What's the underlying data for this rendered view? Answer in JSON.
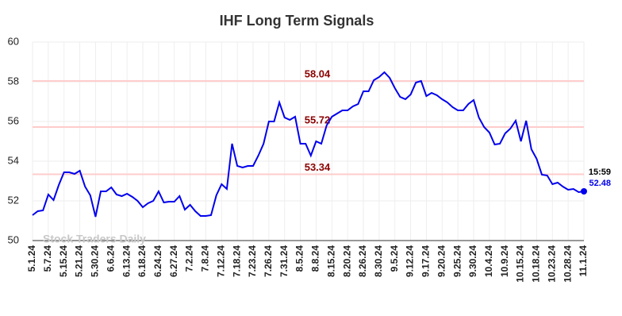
{
  "chart_data": {
    "type": "line",
    "title": "IHF Long Term Signals",
    "categories": [
      "5.1.24",
      null,
      null,
      "5.7.24",
      null,
      null,
      "5.15.24",
      null,
      null,
      "5.21.24",
      null,
      null,
      "5.30.24",
      null,
      null,
      "6.6.24",
      null,
      null,
      "6.13.24",
      null,
      null,
      "6.18.24",
      null,
      null,
      "6.24.24",
      null,
      null,
      "6.27.24",
      null,
      null,
      "7.2.24",
      null,
      null,
      "7.8.24",
      null,
      null,
      "7.12.24",
      null,
      null,
      "7.18.24",
      null,
      null,
      "7.23.24",
      null,
      null,
      "7.26.24",
      null,
      null,
      "7.31.24",
      null,
      null,
      "8.5.24",
      null,
      null,
      "8.8.24",
      null,
      null,
      "8.15.24",
      null,
      null,
      "8.20.24",
      null,
      null,
      "8.26.24",
      null,
      null,
      "8.30.24",
      null,
      null,
      "9.5.24",
      null,
      null,
      "9.12.24",
      null,
      null,
      "9.17.24",
      null,
      null,
      "9.20.24",
      null,
      null,
      "9.25.24",
      null,
      null,
      "9.30.24",
      null,
      null,
      "10.4.24",
      null,
      null,
      "10.9.24",
      null,
      null,
      "10.15.24",
      null,
      null,
      "10.18.24",
      null,
      null,
      "10.23.24",
      null,
      null,
      "10.28.24",
      null,
      null,
      "11.1.24"
    ],
    "values": [
      51.28,
      51.48,
      51.52,
      52.32,
      52.04,
      52.8,
      53.44,
      53.44,
      53.36,
      53.52,
      52.72,
      52.28,
      51.2,
      52.48,
      52.48,
      52.68,
      52.32,
      52.24,
      52.36,
      52.2,
      52.0,
      51.68,
      51.88,
      52.0,
      52.48,
      51.92,
      51.96,
      51.96,
      52.24,
      51.56,
      51.8,
      51.48,
      51.24,
      51.24,
      51.28,
      52.28,
      52.84,
      52.6,
      54.88,
      53.76,
      53.68,
      53.76,
      53.76,
      54.28,
      54.88,
      56.0,
      56.0,
      56.96,
      56.2,
      56.08,
      56.24,
      54.88,
      54.88,
      54.28,
      55.0,
      54.88,
      55.8,
      56.24,
      56.4,
      56.56,
      56.56,
      56.76,
      56.88,
      57.52,
      57.52,
      58.08,
      58.24,
      58.48,
      58.2,
      57.68,
      57.24,
      57.12,
      57.36,
      57.96,
      58.04,
      57.28,
      57.44,
      57.32,
      57.12,
      56.96,
      56.72,
      56.56,
      56.56,
      56.88,
      57.08,
      56.2,
      55.72,
      55.44,
      54.84,
      54.88,
      55.4,
      55.64,
      56.04,
      55.0,
      56.04,
      54.6,
      54.12,
      53.32,
      53.28,
      52.84,
      52.92,
      52.72,
      52.56,
      52.6,
      52.44,
      52.48
    ],
    "color": "#0000ee",
    "ylim": [
      50,
      60
    ],
    "yticks": [
      50,
      52,
      54,
      56,
      58,
      60
    ],
    "grid": true,
    "hlines": [
      {
        "value": 58.04,
        "color": "#ffcccc"
      },
      {
        "value": 55.72,
        "color": "#ffcccc"
      },
      {
        "value": 53.34,
        "color": "#ffcccc"
      }
    ],
    "hline_label_color": "#8b0000",
    "last_time": "15:59",
    "watermark": "Stock Traders Daily"
  }
}
